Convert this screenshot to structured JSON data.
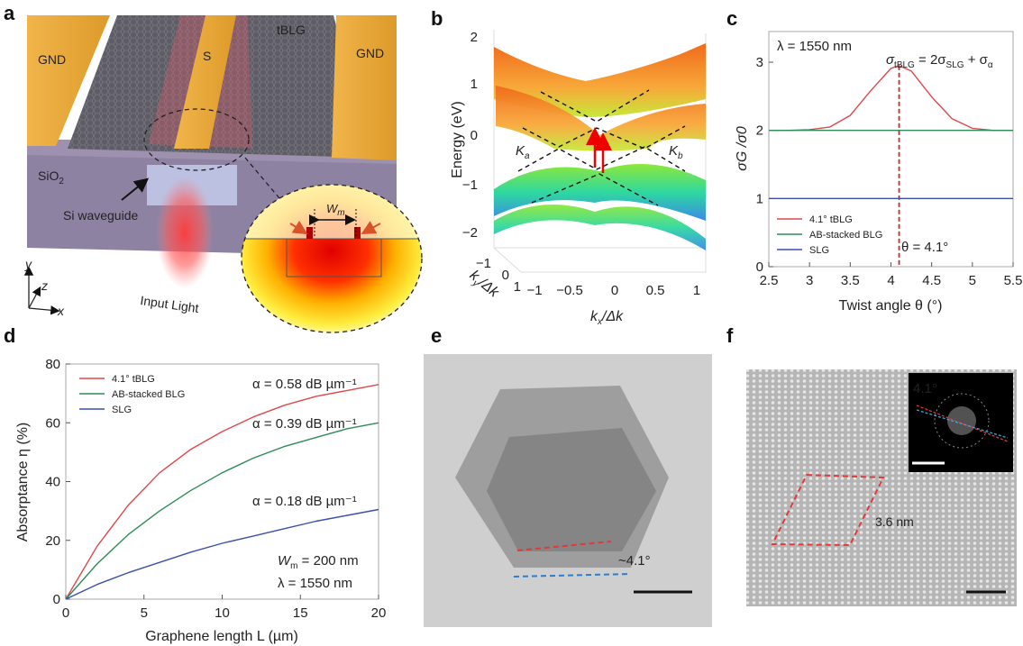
{
  "panel_a": {
    "label": "a",
    "gnd_left": "GND",
    "signal": "S",
    "tblg": "tBLG",
    "gnd_right": "GND",
    "sio2": "SiO",
    "sio2_sub": "2",
    "waveguide": "Si waveguide",
    "input_light": "Input Light",
    "wm": "W",
    "wm_sub": "m",
    "axis_y": "y",
    "axis_z": "z",
    "axis_x": "x"
  },
  "panel_b": {
    "label": "b",
    "ylabel": "Energy (eV)",
    "yticks": [
      "2",
      "1",
      "0",
      "−1",
      "−2"
    ],
    "xticks": [
      "−1",
      "−0.5",
      "0",
      "0.5",
      "1"
    ],
    "kyticks": [
      "−1",
      "0",
      "1"
    ],
    "xlabel": "k",
    "xlabel_sub": "x",
    "xlabel_rest": "/Δk",
    "kylabel": "k",
    "kylabel_sub": "y",
    "kylabel_rest": "/Δk",
    "ka": "K",
    "ka_sub": "a",
    "kb": "K",
    "kb_sub": "b"
  },
  "panel_e": {
    "label": "e",
    "angle": "~4.1°"
  },
  "panel_f": {
    "label": "f",
    "inset_angle": "4.1°",
    "moire_period": "3.6 nm"
  },
  "colors": {
    "tblg": "#e0474c",
    "blg": "#2e8b57",
    "slg": "#3b4fb0",
    "gold": "#eaa935"
  },
  "chart_data": [
    {
      "id": "c",
      "label": "c",
      "type": "line",
      "xlabel": "Twist angle  θ (°)",
      "ylabel": "σG /σ0",
      "xlim": [
        2.5,
        5.5
      ],
      "ylim": [
        0,
        3.45
      ],
      "xticks": [
        "2.5",
        "3",
        "3.5",
        "4",
        "4.5",
        "5",
        "5.5"
      ],
      "yticks": [
        "0",
        "1",
        "2",
        "3"
      ],
      "annotations": {
        "wavelength": "λ = 1550 nm",
        "formula_a": "σ",
        "formula_a_sub": "tBLG",
        "formula_b": " = 2σ",
        "formula_b_sub": "SLG",
        "formula_c": " + σ",
        "formula_c_sub": "α",
        "theta": "θ = 4.1°"
      },
      "vline_x": 4.1,
      "legend_position": "bottom-left",
      "series": [
        {
          "name": "4.1° tBLG",
          "color": "#e0474c",
          "x": [
            2.5,
            2.75,
            3.0,
            3.25,
            3.5,
            3.75,
            4.0,
            4.1,
            4.25,
            4.5,
            4.75,
            5.0,
            5.25,
            5.5
          ],
          "y": [
            2.0,
            2.0,
            2.01,
            2.05,
            2.22,
            2.58,
            2.91,
            2.95,
            2.87,
            2.49,
            2.17,
            2.03,
            2.0,
            2.0
          ]
        },
        {
          "name": "AB-stacked BLG",
          "color": "#2e8b57",
          "x": [
            2.5,
            5.5
          ],
          "y": [
            2.0,
            2.0
          ]
        },
        {
          "name": "SLG",
          "color": "#3b4fb0",
          "x": [
            2.5,
            5.5
          ],
          "y": [
            1.0,
            1.0
          ]
        }
      ]
    },
    {
      "id": "d",
      "label": "d",
      "type": "line",
      "xlabel": "Graphene length L (µm)",
      "ylabel": "Absorptance η (%)",
      "xlim": [
        0,
        20
      ],
      "ylim": [
        0,
        80
      ],
      "xticks": [
        "0",
        "5",
        "10",
        "15",
        "20"
      ],
      "yticks": [
        "0",
        "20",
        "40",
        "60",
        "80"
      ],
      "annotations": {
        "alpha_tblg": "α = 0.58 dB µm⁻¹",
        "alpha_blg": "α = 0.39 dB µm⁻¹",
        "alpha_slg": "α = 0.18 dB µm⁻¹",
        "wm": "W",
        "wm_sub": "m",
        "wm_rest": " = 200 nm",
        "wavelength": "λ = 1550 nm"
      },
      "legend_position": "top-left",
      "series": [
        {
          "name": "4.1° tBLG",
          "color": "#e0474c",
          "x": [
            0,
            2,
            4,
            6,
            8,
            10,
            12,
            14,
            16,
            18,
            20
          ],
          "y": [
            0,
            18,
            32,
            43,
            51,
            57,
            62,
            66,
            69,
            71,
            73
          ]
        },
        {
          "name": "AB-stacked BLG",
          "color": "#2e8b57",
          "x": [
            0,
            2,
            4,
            6,
            8,
            10,
            12,
            14,
            16,
            18,
            20
          ],
          "y": [
            0,
            12,
            22,
            30,
            37,
            43,
            48,
            52,
            55,
            58,
            60
          ]
        },
        {
          "name": "SLG",
          "color": "#3b4fb0",
          "x": [
            0,
            2,
            4,
            6,
            8,
            10,
            12,
            14,
            16,
            18,
            20
          ],
          "y": [
            0,
            5,
            9,
            12.5,
            16,
            19,
            21.5,
            24,
            26.5,
            28.5,
            30.5
          ]
        }
      ]
    }
  ]
}
